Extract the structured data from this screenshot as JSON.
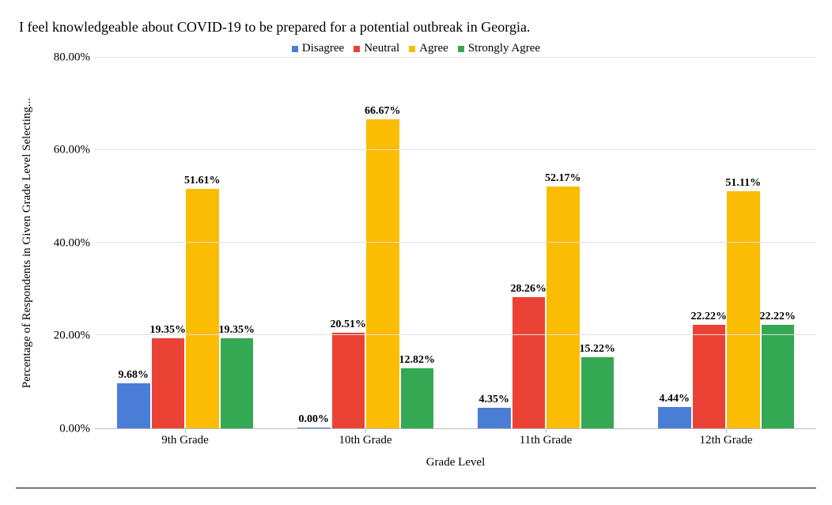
{
  "chart": {
    "type": "bar",
    "title": "I feel knowledgeable about COVID-19 to be prepared for a potential outbreak in Georgia.",
    "xlabel": "Grade Level",
    "ylabel": "Percentage of Respondents in Given Grade Level Selecting...",
    "categories": [
      "9th Grade",
      "10th Grade",
      "11th Grade",
      "12th Grade"
    ],
    "series": [
      {
        "name": "Disagree",
        "color": "#4a7ed6",
        "values": [
          9.68,
          0.0,
          4.35,
          4.44
        ],
        "labels": [
          "9.68%",
          "0.00%",
          "4.35%",
          "4.44%"
        ]
      },
      {
        "name": "Neutral",
        "color": "#ea4335",
        "values": [
          19.35,
          20.51,
          28.26,
          22.22
        ],
        "labels": [
          "19.35%",
          "20.51%",
          "28.26%",
          "22.22%"
        ]
      },
      {
        "name": "Agree",
        "color": "#fbbc04",
        "values": [
          51.61,
          66.67,
          52.17,
          51.11
        ],
        "labels": [
          "51.61%",
          "66.67%",
          "52.17%",
          "51.11%"
        ]
      },
      {
        "name": "Strongly Agree",
        "color": "#34a853",
        "values": [
          19.35,
          12.82,
          15.22,
          22.22
        ],
        "labels": [
          "19.35%",
          "12.82%",
          "15.22%",
          "22.22%"
        ]
      }
    ],
    "ylim": [
      0,
      80
    ],
    "ytick_step": 20,
    "ytick_labels": [
      "0.00%",
      "20.00%",
      "40.00%",
      "60.00%",
      "80.00%"
    ],
    "background_color": "#ffffff",
    "grid_color": "#e0e0e0",
    "title_fontsize": 18,
    "label_fontsize": 15,
    "datalabel_fontsize": 14,
    "datalabel_weight": "bold"
  }
}
